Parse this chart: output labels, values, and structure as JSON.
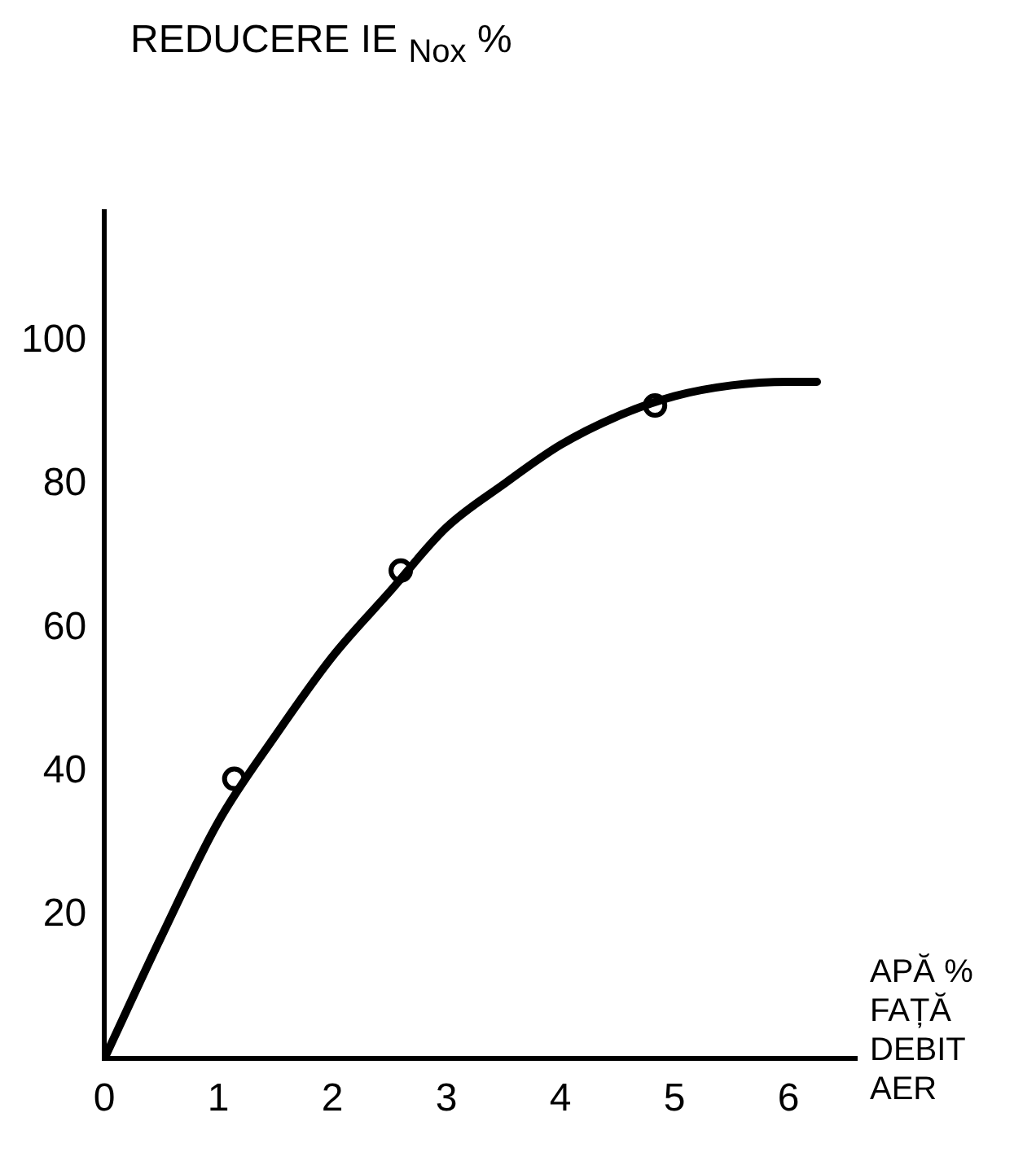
{
  "chart_data": {
    "type": "line",
    "ylabel": "REDUCERE IE $_{Nox}$ %",
    "xlabel": "APĂ % FAȚĂ DEBIT AER",
    "xlim": [
      0,
      6.6
    ],
    "xticks": [
      0,
      1,
      2,
      3,
      4,
      5,
      6
    ],
    "ylim": [
      0,
      118
    ],
    "yticks": [
      20,
      40,
      60,
      80,
      100
    ],
    "grid": false,
    "legend": false,
    "series": [
      {
        "type": "line",
        "color": "#000000",
        "marker": "none",
        "x": [
          0,
          0.5,
          1,
          1.5,
          2,
          2.5,
          3,
          3.5,
          4,
          4.5,
          5,
          5.5,
          6,
          6.25
        ],
        "values": [
          0,
          17,
          33,
          45,
          56,
          65,
          74,
          80,
          85.5,
          89.5,
          92.3,
          93.8,
          94.3,
          94.3
        ]
      },
      {
        "type": "scatter",
        "color": "#000000",
        "marker": "circle",
        "x": [
          1.14,
          2.6,
          4.83
        ],
        "values": [
          39,
          68,
          91
        ]
      }
    ]
  }
}
